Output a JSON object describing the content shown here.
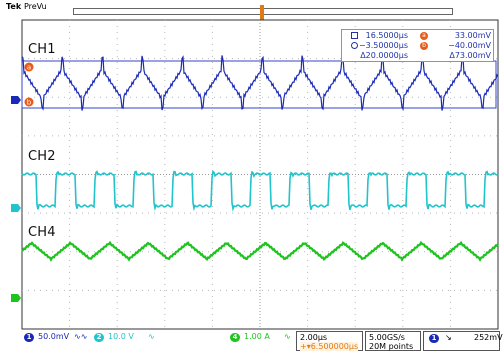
{
  "brand": {
    "name": "Tek",
    "mode": "PreVu"
  },
  "trigger_marker": {
    "label": "T"
  },
  "channels": [
    {
      "label": "CH1",
      "color": "#1a2ab8",
      "marker": "1"
    },
    {
      "label": "CH2",
      "color": "#22c4cc",
      "marker": "2"
    },
    {
      "label": "CH4",
      "color": "#1ec41e",
      "marker": "4"
    }
  ],
  "ch1_cursor_badges": {
    "a": "a",
    "b": "b"
  },
  "cursor_readout": {
    "row1": {
      "time": "16.5000µs",
      "badge": "a",
      "volt": "33.00mV"
    },
    "row2": {
      "time": "−3.50000µs",
      "badge": "b",
      "volt": "−40.00mV"
    },
    "row3": {
      "time": "Δ20.0000µs",
      "volt": "Δ73.00mV"
    }
  },
  "status": {
    "ch1": {
      "num": "1",
      "scale": "50.0mV",
      "coupling": "∿∿"
    },
    "ch2": {
      "num": "2",
      "scale": "10.0 V",
      "coupling": "∿"
    },
    "ch4": {
      "num": "4",
      "scale": "1.00 A",
      "coupling": "∿"
    },
    "timebase": "2.00µs",
    "delay": "+▾6.500000µs",
    "sample_rate": "5.00GS/s",
    "record_length": "20M points",
    "trigger": {
      "source": "1",
      "slope": "↘",
      "level": "252mV"
    }
  }
}
